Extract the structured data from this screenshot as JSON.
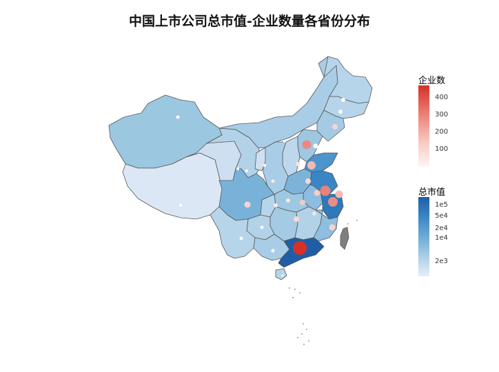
{
  "title": "中国上市公司总市值-企业数量各省份分布",
  "legends": {
    "count": {
      "title": "企业数",
      "ticks": [
        "400",
        "300",
        "200",
        "100"
      ],
      "colors": {
        "high": "#d73027",
        "low": "#fde8e6"
      }
    },
    "market_cap": {
      "title": "总市值",
      "ticks": [
        "1e5",
        "5e4",
        "2e4",
        "1e4",
        "2e3"
      ],
      "colors": {
        "high": "#1f5da6",
        "low": "#dde8f6"
      }
    }
  },
  "colors": {
    "border": "#555555",
    "taiwan": "#7f7f7f",
    "background": "#ffffff"
  }
}
